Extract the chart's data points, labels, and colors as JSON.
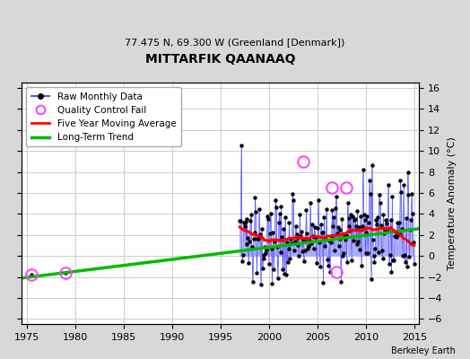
{
  "title": "MITTARFIK QAANAAQ",
  "subtitle": "77.475 N, 69.300 W (Greenland [Denmark])",
  "ylabel": "Temperature Anomaly (°C)",
  "xlim": [
    1974.5,
    2015.5
  ],
  "ylim": [
    -6.5,
    16.5
  ],
  "yticks": [
    -6,
    -4,
    -2,
    0,
    2,
    4,
    6,
    8,
    10,
    12,
    14,
    16
  ],
  "xticks": [
    1975,
    1980,
    1985,
    1990,
    1995,
    2000,
    2005,
    2010,
    2015
  ],
  "figure_bg_color": "#d8d8d8",
  "plot_bg_color": "#ffffff",
  "grid_color": "#cccccc",
  "line_color": "#5555ff",
  "stem_color": "#aaaaff",
  "dot_color": "#000000",
  "ma_color": "#ff0000",
  "trend_color": "#00bb00",
  "qc_color": "#ff44ff",
  "attribution": "Berkeley Earth",
  "legend_labels": [
    "Raw Monthly Data",
    "Quality Control Fail",
    "Five Year Moving Average",
    "Long-Term Trend"
  ],
  "qc_points": [
    [
      1975.5,
      -1.8
    ],
    [
      1979.0,
      -1.6
    ],
    [
      2003.5,
      9.0
    ],
    [
      2006.5,
      6.5
    ],
    [
      2008.0,
      6.5
    ],
    [
      2007.0,
      -1.5
    ]
  ],
  "trend_x": [
    1974.5,
    2015.5
  ],
  "trend_y": [
    -2.1,
    2.6
  ],
  "seed": 137
}
